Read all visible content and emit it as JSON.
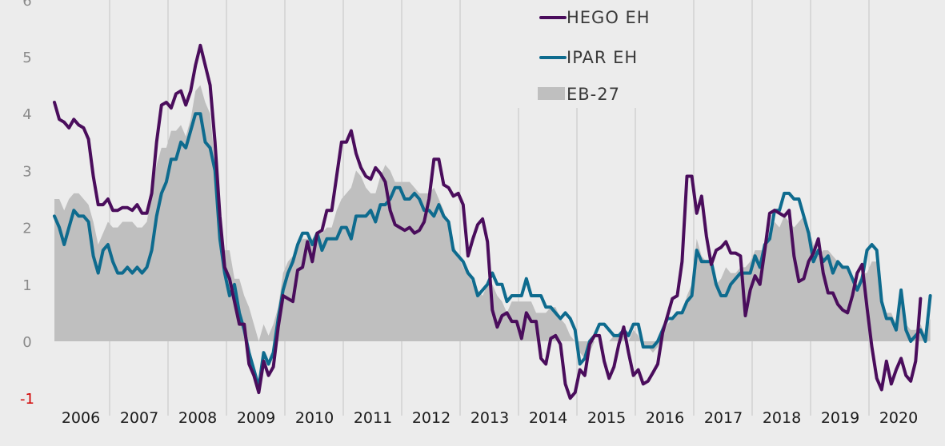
{
  "chart_data": {
    "type": "line",
    "title": "",
    "xlabel": "",
    "ylabel": "",
    "ylim": [
      -1,
      6
    ],
    "yticks": [
      6,
      5,
      4,
      3,
      2,
      1,
      0,
      -1
    ],
    "grid": "vertical",
    "legend": "top-center",
    "x_start": 2006.0,
    "x_step": 0.0833,
    "years": [
      "2006",
      "2007",
      "2008",
      "2009",
      "2010",
      "2011",
      "2012",
      "2013",
      "2014",
      "2015",
      "2016",
      "2017",
      "2018",
      "2019",
      "2020"
    ],
    "series": [
      {
        "name": "HEGO EH",
        "type": "line",
        "color": "#4a0d5c",
        "values": [
          4.2,
          3.9,
          3.85,
          3.75,
          3.9,
          3.8,
          3.75,
          3.55,
          2.9,
          2.4,
          2.4,
          2.5,
          2.3,
          2.3,
          2.35,
          2.35,
          2.3,
          2.4,
          2.25,
          2.25,
          2.6,
          3.5,
          4.15,
          4.2,
          4.1,
          4.35,
          4.4,
          4.15,
          4.4,
          4.85,
          5.2,
          4.85,
          4.5,
          3.5,
          2.2,
          1.3,
          1.1,
          0.7,
          0.3,
          0.3,
          -0.4,
          -0.6,
          -0.9,
          -0.35,
          -0.6,
          -0.45,
          0.25,
          0.8,
          0.75,
          0.7,
          1.25,
          1.3,
          1.75,
          1.4,
          1.9,
          1.95,
          2.3,
          2.3,
          2.9,
          3.5,
          3.5,
          3.7,
          3.3,
          3.05,
          2.9,
          2.85,
          3.05,
          2.95,
          2.8,
          2.3,
          2.05,
          2.0,
          1.95,
          2.0,
          1.9,
          1.95,
          2.1,
          2.5,
          3.2,
          3.2,
          2.75,
          2.7,
          2.55,
          2.6,
          2.4,
          1.5,
          1.8,
          2.05,
          2.15,
          1.75,
          0.55,
          0.25,
          0.45,
          0.5,
          0.35,
          0.35,
          0.05,
          0.5,
          0.35,
          0.35,
          -0.3,
          -0.4,
          0.05,
          0.1,
          -0.05,
          -0.75,
          -1.0,
          -0.9,
          -0.5,
          -0.6,
          -0.05,
          0.1,
          0.1,
          -0.35,
          -0.65,
          -0.45,
          -0.05,
          0.25,
          -0.2,
          -0.6,
          -0.5,
          -0.75,
          -0.7,
          -0.55,
          -0.4,
          0.15,
          0.45,
          0.75,
          0.8,
          1.4,
          2.9,
          2.9,
          2.25,
          2.55,
          1.85,
          1.35,
          1.6,
          1.65,
          1.75,
          1.55,
          1.55,
          1.5,
          0.45,
          0.9,
          1.15,
          1.0,
          1.6,
          2.25,
          2.3,
          2.25,
          2.2,
          2.3,
          1.5,
          1.05,
          1.1,
          1.4,
          1.55,
          1.8,
          1.2,
          0.85,
          0.85,
          0.65,
          0.55,
          0.5,
          0.8,
          1.2,
          1.35,
          0.6,
          -0.1,
          -0.65,
          -0.85,
          -0.35,
          -0.75,
          -0.5,
          -0.3,
          -0.6,
          -0.7,
          -0.35,
          0.75
        ]
      },
      {
        "name": "IPAR EH",
        "type": "line",
        "color": "#0e6b8e",
        "values": [
          2.2,
          2.0,
          1.7,
          2.0,
          2.3,
          2.2,
          2.2,
          2.1,
          1.5,
          1.2,
          1.6,
          1.7,
          1.4,
          1.2,
          1.2,
          1.3,
          1.2,
          1.3,
          1.2,
          1.3,
          1.6,
          2.2,
          2.6,
          2.8,
          3.2,
          3.2,
          3.5,
          3.4,
          3.7,
          4.0,
          4.0,
          3.5,
          3.4,
          3.0,
          1.8,
          1.2,
          0.8,
          1.0,
          0.5,
          0.2,
          -0.2,
          -0.5,
          -0.8,
          -0.2,
          -0.4,
          -0.2,
          0.4,
          0.9,
          1.2,
          1.4,
          1.7,
          1.9,
          1.9,
          1.7,
          1.9,
          1.6,
          1.8,
          1.8,
          1.8,
          2.0,
          2.0,
          1.8,
          2.2,
          2.2,
          2.2,
          2.3,
          2.1,
          2.4,
          2.4,
          2.5,
          2.7,
          2.7,
          2.5,
          2.5,
          2.6,
          2.5,
          2.3,
          2.3,
          2.2,
          2.4,
          2.2,
          2.1,
          1.6,
          1.5,
          1.4,
          1.2,
          1.1,
          0.8,
          0.9,
          1.0,
          1.2,
          1.0,
          1.0,
          0.7,
          0.8,
          0.8,
          0.8,
          1.1,
          0.8,
          0.8,
          0.8,
          0.6,
          0.6,
          0.5,
          0.4,
          0.5,
          0.4,
          0.2,
          -0.4,
          -0.3,
          0.0,
          0.1,
          0.3,
          0.3,
          0.2,
          0.1,
          0.1,
          0.2,
          0.1,
          0.3,
          0.3,
          -0.1,
          -0.1,
          -0.1,
          0.0,
          0.2,
          0.4,
          0.4,
          0.5,
          0.5,
          0.7,
          0.8,
          1.6,
          1.4,
          1.4,
          1.4,
          1.0,
          0.8,
          0.8,
          1.0,
          1.1,
          1.2,
          1.2,
          1.2,
          1.5,
          1.3,
          1.7,
          1.8,
          2.3,
          2.3,
          2.6,
          2.6,
          2.5,
          2.5,
          2.2,
          1.9,
          1.4,
          1.6,
          1.4,
          1.5,
          1.2,
          1.4,
          1.3,
          1.3,
          1.1,
          0.9,
          1.1,
          1.6,
          1.7,
          1.6,
          0.7,
          0.4,
          0.4,
          0.2,
          0.9,
          0.2,
          0.0,
          0.1,
          0.2,
          0.0,
          0.8
        ]
      },
      {
        "name": "EB-27",
        "type": "area",
        "color": "#bfbfbf",
        "values": [
          2.5,
          2.5,
          2.3,
          2.5,
          2.6,
          2.6,
          2.5,
          2.4,
          2.1,
          1.7,
          1.9,
          2.1,
          2.0,
          2.0,
          2.1,
          2.1,
          2.1,
          2.0,
          2.0,
          2.1,
          2.6,
          3.1,
          3.4,
          3.4,
          3.7,
          3.7,
          3.8,
          3.6,
          3.9,
          4.4,
          4.5,
          4.2,
          4.0,
          3.1,
          2.3,
          1.6,
          1.6,
          1.1,
          1.1,
          0.8,
          0.6,
          0.3,
          0.0,
          0.3,
          0.1,
          0.3,
          0.6,
          1.2,
          1.4,
          1.5,
          1.7,
          1.8,
          1.8,
          1.8,
          1.9,
          1.9,
          2.0,
          2.0,
          2.3,
          2.5,
          2.6,
          2.7,
          3.0,
          2.9,
          2.7,
          2.6,
          2.6,
          2.9,
          3.1,
          3.0,
          2.8,
          2.8,
          2.8,
          2.8,
          2.7,
          2.6,
          2.6,
          2.6,
          2.7,
          2.5,
          2.3,
          2.0,
          1.7,
          1.5,
          1.3,
          1.2,
          1.0,
          0.9,
          0.8,
          1.0,
          1.0,
          0.8,
          0.7,
          0.5,
          0.7,
          0.7,
          0.7,
          0.7,
          0.7,
          0.5,
          0.5,
          0.5,
          0.6,
          0.6,
          0.4,
          0.3,
          0.1,
          0.0,
          -0.2,
          -0.3,
          -0.2,
          0.0,
          0.0,
          0.0,
          0.0,
          0.1,
          0.1,
          0.1,
          0.0,
          0.2,
          0.1,
          -0.1,
          -0.1,
          -0.2,
          -0.1,
          0.1,
          0.3,
          0.4,
          0.5,
          0.5,
          0.8,
          1.0,
          1.8,
          1.5,
          1.4,
          1.4,
          1.0,
          1.1,
          1.3,
          1.2,
          1.2,
          1.3,
          1.3,
          1.4,
          1.6,
          1.6,
          1.6,
          1.8,
          2.1,
          2.0,
          2.2,
          2.1,
          2.0,
          2.1,
          2.2,
          2.0,
          1.7,
          1.5,
          1.6,
          1.6,
          1.5,
          1.4,
          1.3,
          1.3,
          1.1,
          1.0,
          1.2,
          1.2,
          1.4,
          1.4,
          0.7,
          0.5,
          0.5,
          0.3,
          0.7,
          0.3,
          0.2,
          0.2,
          0.3,
          0.1,
          0.4
        ]
      }
    ]
  }
}
